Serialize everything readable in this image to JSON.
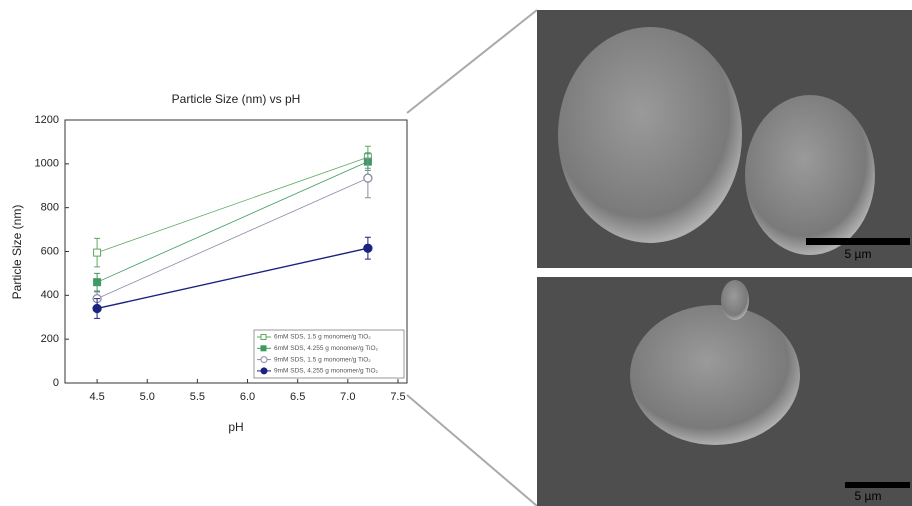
{
  "chart_data": {
    "type": "line",
    "title": "Particle Size (nm) vs pH",
    "x_label": "pH",
    "y_label": "Particle Size (nm)",
    "x": [
      4.5,
      7.2
    ],
    "series": [
      {
        "name": "6mM SDS, 1.5 g monomer/g TiO₂",
        "color": "#5fa85f",
        "marker": "square",
        "filled": false,
        "values": [
          595,
          1030
        ],
        "errors": [
          65,
          50
        ]
      },
      {
        "name": "6mM SDS, 4.255 g monomer/g TiO₂",
        "color": "#3d9a62",
        "marker": "square",
        "filled": true,
        "values": [
          460,
          1010
        ],
        "errors": [
          40,
          40
        ]
      },
      {
        "name": "9mM SDS, 1.5 g monomer/g TiO₂",
        "color": "#8a8aa6",
        "marker": "circle",
        "filled": false,
        "values": [
          385,
          935
        ],
        "errors": [
          30,
          90
        ]
      },
      {
        "name": "9mM SDS, 4.255 g monomer/g TiO₂",
        "color": "#1a237e",
        "marker": "circle",
        "filled": true,
        "values": [
          340,
          615
        ],
        "errors": [
          45,
          50
        ]
      }
    ],
    "xlim": [
      4.18,
      7.59
    ],
    "xticks": [
      4.5,
      {
        "value": 5,
        "label": "5.0"
      },
      5.5,
      {
        "value": 6,
        "label": "6.0"
      },
      6.5,
      {
        "value": 7,
        "label": "7.0"
      },
      7.5
    ],
    "ylim": [
      0,
      1200
    ],
    "yticks": [
      0,
      200,
      400,
      600,
      800,
      1000,
      1200
    ],
    "grid": false,
    "legend": "lower right"
  },
  "images": [
    {
      "scale_label": "5 µm"
    },
    {
      "scale_label": "5 µm"
    }
  ]
}
